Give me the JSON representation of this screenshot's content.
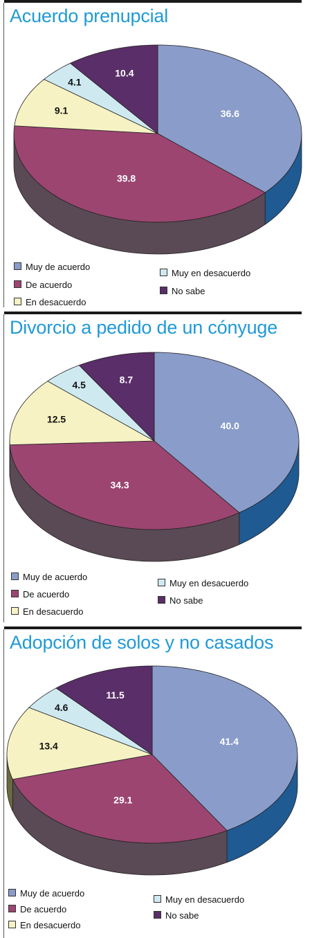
{
  "colors": {
    "muy_de_acuerdo": "#8a9cc9",
    "de_acuerdo": "#9c4571",
    "en_desacuerdo": "#f6f2c3",
    "muy_en_desacuerdo": "#cfe9f1",
    "no_sabe": "#5a2e68",
    "title": "#1f9ad6"
  },
  "legend": {
    "muy_de_acuerdo": "Muy de acuerdo",
    "de_acuerdo": "De acuerdo",
    "en_desacuerdo": "En desacuerdo",
    "muy_en_desacuerdo": "Muy en desacuerdo",
    "no_sabe": "No sabe"
  },
  "chart_data": [
    {
      "type": "pie",
      "title": "Acuerdo prenupcial",
      "labels": [
        "Muy de acuerdo",
        "De acuerdo",
        "En desacuerdo",
        "Muy en desacuerdo",
        "No sabe"
      ],
      "values": [
        36.6,
        39.8,
        9.1,
        4.1,
        10.4
      ],
      "display_labels": [
        "36.6",
        "39.8",
        "9.1",
        "4.1",
        "10.4"
      ],
      "legend_position": "bottom"
    },
    {
      "type": "pie",
      "title": "Divorcio a pedido de un cónyuge",
      "labels": [
        "Muy de acuerdo",
        "De acuerdo",
        "En desacuerdo",
        "Muy en desacuerdo",
        "No sabe"
      ],
      "values": [
        40.0,
        34.3,
        12.5,
        4.5,
        8.7
      ],
      "display_labels": [
        "40.0",
        "34.3",
        "12.5",
        "4.5",
        "8.7"
      ],
      "legend_position": "bottom"
    },
    {
      "type": "pie",
      "title": "Adopción de solos y no casados",
      "labels": [
        "Muy de acuerdo",
        "De acuerdo",
        "En desacuerdo",
        "Muy en desacuerdo",
        "No sabe"
      ],
      "values": [
        41.4,
        29.1,
        13.4,
        4.6,
        11.5
      ],
      "display_labels": [
        "41.4",
        "29.1",
        "13.4",
        "4.6",
        "11.5"
      ],
      "legend_position": "bottom"
    }
  ]
}
